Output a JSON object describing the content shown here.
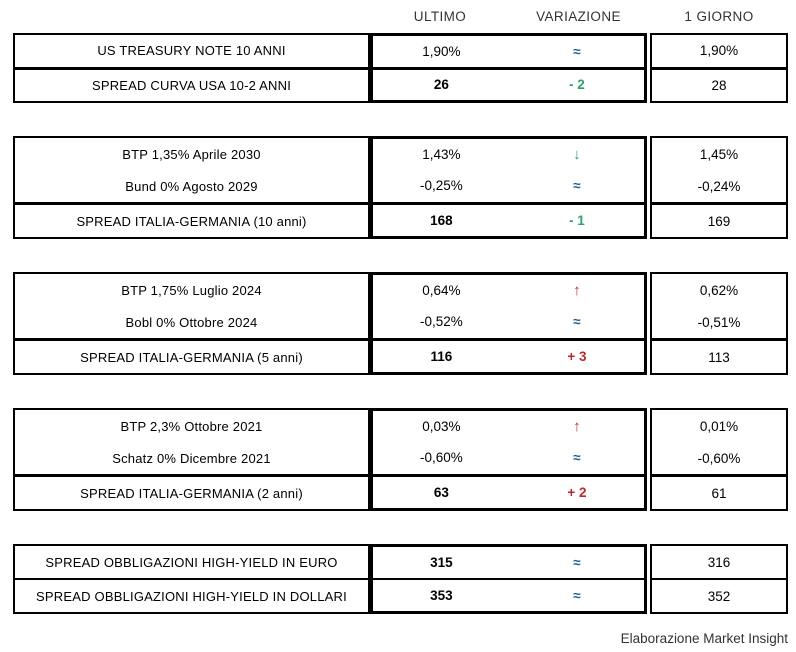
{
  "header": {
    "columns": [
      "ULTIMO",
      "VARIAZIONE",
      "1 GIORNO"
    ]
  },
  "colors": {
    "flat_blue": "#1F6091",
    "down_green": "#2EA06B",
    "up_red": "#C1272D",
    "border_black": "#000000"
  },
  "sections": [
    {
      "rows": [
        {
          "label": "US TREASURY NOTE 10 ANNI",
          "ultimo": "1,90%",
          "variazione": "≈",
          "var_type": "flat",
          "var_icon": "approx-equal-icon",
          "giorno": "1,90%",
          "spread": false,
          "divider": false
        },
        {
          "label": "SPREAD CURVA USA 10-2 ANNI",
          "ultimo": "26",
          "variazione": "- 2",
          "var_type": "down",
          "var_icon": "minus-change-text",
          "giorno": "28",
          "spread": true,
          "divider": true
        }
      ]
    },
    {
      "rows": [
        {
          "label": "BTP 1,35% Aprile 2030",
          "ultimo": "1,43%",
          "variazione": "↓",
          "var_type": "down",
          "var_icon": "down-arrow-icon",
          "giorno": "1,45%",
          "spread": false,
          "divider": false
        },
        {
          "label": "Bund 0% Agosto 2029",
          "ultimo": "-0,25%",
          "variazione": "≈",
          "var_type": "flat",
          "var_icon": "approx-equal-icon",
          "giorno": "-0,24%",
          "spread": false,
          "divider": false
        },
        {
          "label": "SPREAD ITALIA-GERMANIA (10 anni)",
          "ultimo": "168",
          "variazione": "- 1",
          "var_type": "down",
          "var_icon": "minus-change-text",
          "giorno": "169",
          "spread": true,
          "divider": true
        }
      ]
    },
    {
      "rows": [
        {
          "label": "BTP 1,75% Luglio 2024",
          "ultimo": "0,64%",
          "variazione": "↑",
          "var_type": "up",
          "var_icon": "up-arrow-icon",
          "giorno": "0,62%",
          "spread": false,
          "divider": false
        },
        {
          "label": "Bobl 0% Ottobre 2024",
          "ultimo": "-0,52%",
          "variazione": "≈",
          "var_type": "flat",
          "var_icon": "approx-equal-icon",
          "giorno": "-0,51%",
          "spread": false,
          "divider": false
        },
        {
          "label": "SPREAD ITALIA-GERMANIA (5 anni)",
          "ultimo": "116",
          "variazione": "+ 3",
          "var_type": "up",
          "var_icon": "plus-change-text",
          "giorno": "113",
          "spread": true,
          "divider": true
        }
      ]
    },
    {
      "rows": [
        {
          "label": "BTP 2,3% Ottobre 2021",
          "ultimo": "0,03%",
          "variazione": "↑",
          "var_type": "up",
          "var_icon": "up-arrow-icon",
          "giorno": "0,01%",
          "spread": false,
          "divider": false
        },
        {
          "label": "Schatz 0% Dicembre 2021",
          "ultimo": "-0,60%",
          "variazione": "≈",
          "var_type": "flat",
          "var_icon": "approx-equal-icon",
          "giorno": "-0,60%",
          "spread": false,
          "divider": false
        },
        {
          "label": "SPREAD ITALIA-GERMANIA (2 anni)",
          "ultimo": "63",
          "variazione": "+ 2",
          "var_type": "up",
          "var_icon": "plus-change-text",
          "giorno": "61",
          "spread": true,
          "divider": true
        }
      ]
    },
    {
      "rows": [
        {
          "label": "SPREAD OBBLIGAZIONI HIGH-YIELD IN EURO",
          "ultimo": "315",
          "variazione": "≈",
          "var_type": "flat",
          "var_icon": "approx-equal-icon",
          "giorno": "316",
          "spread": true,
          "divider": false
        },
        {
          "label": "SPREAD OBBLIGAZIONI HIGH-YIELD IN DOLLARI",
          "ultimo": "353",
          "variazione": "≈",
          "var_type": "flat",
          "var_icon": "approx-equal-icon",
          "giorno": "352",
          "spread": true,
          "divider": true,
          "divider_thin": true
        }
      ]
    }
  ],
  "footer": {
    "credit": "Elaborazione Market Insight"
  },
  "chart_data": {
    "type": "table",
    "title": "",
    "columns": [
      "",
      "ULTIMO",
      "VARIAZIONE",
      "1 GIORNO"
    ],
    "rows": [
      [
        "US TREASURY NOTE 10 ANNI",
        "1,90%",
        "≈",
        "1,90%"
      ],
      [
        "SPREAD CURVA USA 10-2 ANNI",
        "26",
        "-2",
        "28"
      ],
      [
        "BTP 1,35% Aprile 2030",
        "1,43%",
        "↓",
        "1,45%"
      ],
      [
        "Bund 0% Agosto 2029",
        "-0,25%",
        "≈",
        "-0,24%"
      ],
      [
        "SPREAD ITALIA-GERMANIA (10 anni)",
        "168",
        "-1",
        "169"
      ],
      [
        "BTP 1,75% Luglio 2024",
        "0,64%",
        "↑",
        "0,62%"
      ],
      [
        "Bobl 0% Ottobre 2024",
        "-0,52%",
        "≈",
        "-0,51%"
      ],
      [
        "SPREAD ITALIA-GERMANIA (5 anni)",
        "116",
        "+3",
        "113"
      ],
      [
        "BTP 2,3% Ottobre 2021",
        "0,03%",
        "↑",
        "0,01%"
      ],
      [
        "Schatz 0% Dicembre 2021",
        "-0,60%",
        "≈",
        "-0,60%"
      ],
      [
        "SPREAD ITALIA-GERMANIA (2 anni)",
        "63",
        "+2",
        "61"
      ],
      [
        "SPREAD OBBLIGAZIONI HIGH-YIELD IN EURO",
        "315",
        "≈",
        "316"
      ],
      [
        "SPREAD OBBLIGAZIONI HIGH-YIELD IN DOLLARI",
        "353",
        "≈",
        "352"
      ]
    ],
    "annotations": [
      "Elaborazione Market Insight"
    ],
    "legend": {
      "flat_blue_approx": "unchanged",
      "green": "decrease",
      "red": "increase"
    }
  }
}
